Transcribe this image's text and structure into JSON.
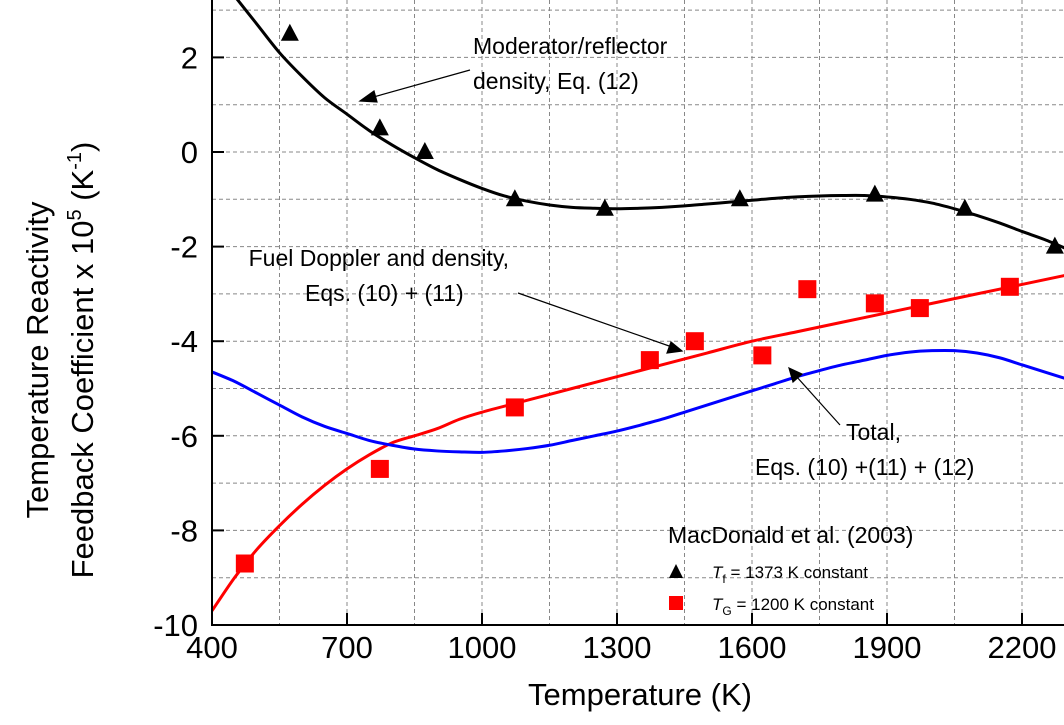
{
  "chart_data": {
    "type": "line",
    "xlabel": "Temperature (K)",
    "ylabel_line1": "Temperature Reactivity",
    "ylabel_line2_prefix": "Feedback Coefficient x 10",
    "ylabel_line2_exp": "5",
    "ylabel_line2_unit_open": " (K",
    "ylabel_line2_unit_exp": "-1",
    "ylabel_line2_unit_close": ")",
    "xlim": [
      400,
      2300
    ],
    "ylim": [
      -10,
      3
    ],
    "x_ticks": [
      400,
      700,
      1000,
      1300,
      1600,
      1900,
      2200
    ],
    "y_ticks": [
      2,
      0,
      -2,
      -4,
      -6,
      -8,
      -10
    ],
    "grid": true,
    "colors": {
      "moderator": "#000000",
      "fuel": "#ff0000",
      "total": "#0000ff",
      "grid": "#888888"
    },
    "series": [
      {
        "key": "moderator_curve",
        "kind": "line",
        "color": "#000000",
        "x": [
          450,
          500,
          550,
          600,
          650,
          700,
          750,
          800,
          850,
          900,
          950,
          1000,
          1050,
          1100,
          1150,
          1200,
          1250,
          1300,
          1350,
          1400,
          1450,
          1500,
          1550,
          1600,
          1650,
          1700,
          1750,
          1800,
          1850,
          1900,
          1950,
          2000,
          2050,
          2100,
          2150,
          2200,
          2250,
          2300
        ],
        "y": [
          3.3,
          2.7,
          2.1,
          1.6,
          1.15,
          0.8,
          0.45,
          0.15,
          -0.12,
          -0.37,
          -0.58,
          -0.77,
          -0.93,
          -1.04,
          -1.12,
          -1.17,
          -1.19,
          -1.2,
          -1.19,
          -1.17,
          -1.14,
          -1.1,
          -1.06,
          -1.02,
          -0.98,
          -0.95,
          -0.93,
          -0.92,
          -0.92,
          -0.95,
          -1.0,
          -1.08,
          -1.2,
          -1.34,
          -1.5,
          -1.68,
          -1.85,
          -2.05
        ]
      },
      {
        "key": "fuel_curve",
        "kind": "line",
        "color": "#ff0000",
        "x": [
          400,
          450,
          500,
          550,
          600,
          650,
          700,
          750,
          800,
          850,
          900,
          950,
          1000,
          1100,
          1200,
          1300,
          1400,
          1500,
          1600,
          1700,
          1800,
          1900,
          2000,
          2100,
          2200,
          2300
        ],
        "y": [
          -9.7,
          -9.0,
          -8.4,
          -7.9,
          -7.45,
          -7.05,
          -6.7,
          -6.4,
          -6.15,
          -6.0,
          -5.85,
          -5.65,
          -5.5,
          -5.25,
          -5.0,
          -4.75,
          -4.5,
          -4.25,
          -4.0,
          -3.8,
          -3.6,
          -3.4,
          -3.2,
          -3.0,
          -2.8,
          -2.6
        ]
      },
      {
        "key": "total_curve",
        "kind": "line",
        "color": "#0000ff",
        "x": [
          400,
          450,
          500,
          550,
          600,
          650,
          700,
          750,
          800,
          850,
          900,
          950,
          1000,
          1050,
          1100,
          1150,
          1200,
          1250,
          1300,
          1350,
          1400,
          1450,
          1500,
          1550,
          1600,
          1650,
          1700,
          1750,
          1800,
          1850,
          1900,
          1950,
          2000,
          2050,
          2100,
          2150,
          2200,
          2250,
          2300
        ],
        "y": [
          -4.65,
          -4.85,
          -5.1,
          -5.35,
          -5.6,
          -5.8,
          -5.95,
          -6.1,
          -6.2,
          -6.28,
          -6.32,
          -6.34,
          -6.35,
          -6.32,
          -6.27,
          -6.2,
          -6.1,
          -6.0,
          -5.9,
          -5.78,
          -5.65,
          -5.5,
          -5.35,
          -5.2,
          -5.05,
          -4.9,
          -4.75,
          -4.62,
          -4.5,
          -4.4,
          -4.3,
          -4.23,
          -4.2,
          -4.2,
          -4.25,
          -4.35,
          -4.5,
          -4.65,
          -4.8
        ]
      },
      {
        "key": "triangles",
        "kind": "scatter",
        "marker": "triangle",
        "color": "#000000",
        "x": [
          573,
          773,
          873,
          1073,
          1273,
          1573,
          1873,
          2073,
          2273
        ],
        "y": [
          2.5,
          0.5,
          0.0,
          -1.0,
          -1.2,
          -1.0,
          -0.9,
          -1.2,
          -2.0
        ]
      },
      {
        "key": "squares",
        "kind": "scatter",
        "marker": "square",
        "color": "#ff0000",
        "x": [
          473,
          773,
          1073,
          1373,
          1473,
          1623,
          1723,
          1873,
          1973,
          2173
        ],
        "y": [
          -8.7,
          -6.7,
          -5.4,
          -4.4,
          -4.0,
          -4.3,
          -2.9,
          -3.2,
          -3.3,
          -2.85
        ]
      }
    ],
    "annotations": {
      "moderator_line1": "Moderator/reflector",
      "moderator_line2": "density, Eq. (12)",
      "fuel_line1": "Fuel Doppler and density,",
      "fuel_line2": "Eqs. (10) + (11)",
      "total_line1": "Total,",
      "total_line2": "Eqs. (10) +(11) + (12)",
      "legend_title": "MacDonald et al. (2003)"
    },
    "legend": {
      "placement": "bottom-right",
      "entries": [
        {
          "marker": "triangle",
          "color": "#000000",
          "symbol": "T",
          "subscript": "f",
          "text": " = 1373 K constant"
        },
        {
          "marker": "square",
          "color": "#ff0000",
          "symbol": "T",
          "subscript": "G",
          "text": " = 1200 K constant"
        }
      ]
    }
  }
}
